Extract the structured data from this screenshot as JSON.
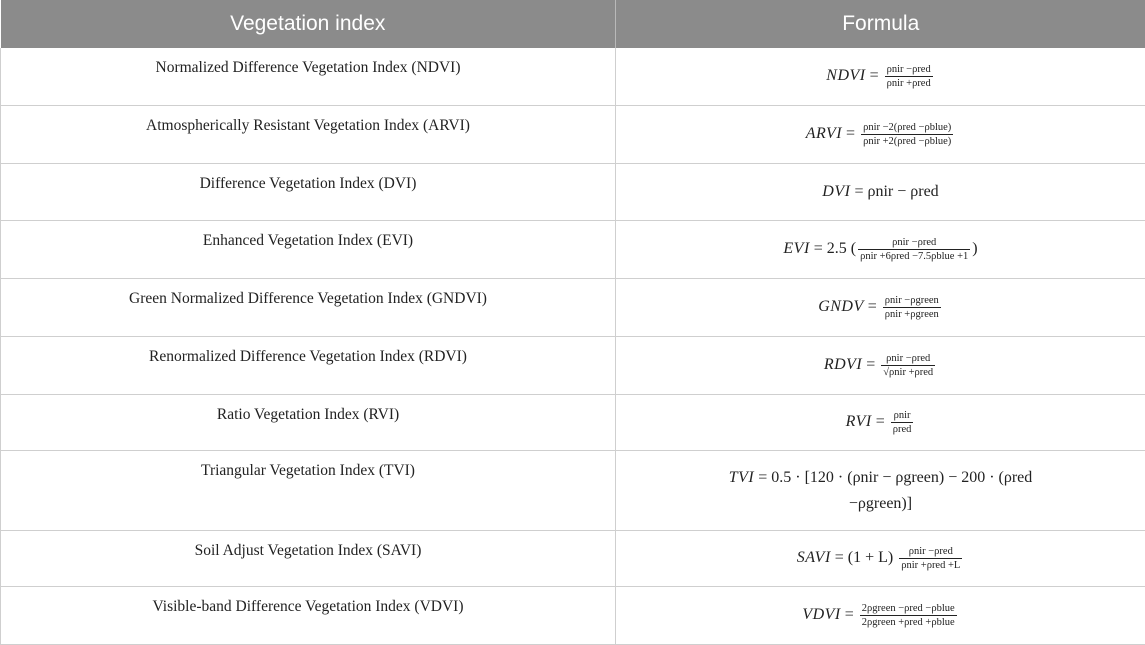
{
  "header": {
    "col1": "Vegetation index",
    "col2": "Formula"
  },
  "rows": [
    {
      "name": "Normalized Difference Vegetation Index (NDVI)",
      "lhs": "NDVI",
      "num": "ρnir −ρred",
      "den": "ρnir +ρred"
    },
    {
      "name": "Atmospherically Resistant Vegetation Index (ARVI)",
      "lhs": "ARVI",
      "num": "ρnir −2(ρred −ρblue)",
      "den": "ρnir +2(ρred −ρblue)"
    },
    {
      "name": "Difference Vegetation Index (DVI)",
      "lhs": "DVI",
      "rhs": "ρnir − ρred"
    },
    {
      "name": "Enhanced Vegetation Index (EVI)",
      "lhs": "EVI",
      "prefix": "2.5 (",
      "num": "ρnir −ρred",
      "den": "ρnir +6ρred −7.5ρblue +1",
      "suffix": ")"
    },
    {
      "name": "Green Normalized Difference Vegetation Index (GNDVI)",
      "lhs": "GNDV",
      "num": "ρnir −ρgreen",
      "den": "ρnir +ρgreen"
    },
    {
      "name": "Renormalized Difference Vegetation Index (RDVI)",
      "lhs": "RDVI",
      "num": "ρnir −ρred",
      "den": "√ρnir +ρred"
    },
    {
      "name": "Ratio Vegetation Index (RVI)",
      "lhs": "RVI",
      "num": "ρnir",
      "den": "ρred"
    },
    {
      "name": "Triangular Vegetation Index (TVI)",
      "lhs": "TVI",
      "line1": "0.5 · [120 · (ρnir − ρgreen) − 200 · (ρred",
      "line2": "−ρgreen)]"
    },
    {
      "name": "Soil Adjust Vegetation Index (SAVI)",
      "lhs": "SAVI",
      "prefix": "(1 + L)",
      "num": "ρnir −ρred",
      "den": "ρnir +ρred +L"
    },
    {
      "name": "Visible-band Difference Vegetation Index (VDVI)",
      "lhs": "VDVI",
      "num": "2ρgreen −ρred −ρblue",
      "den": "2ρgreen +ρred +ρblue"
    }
  ]
}
